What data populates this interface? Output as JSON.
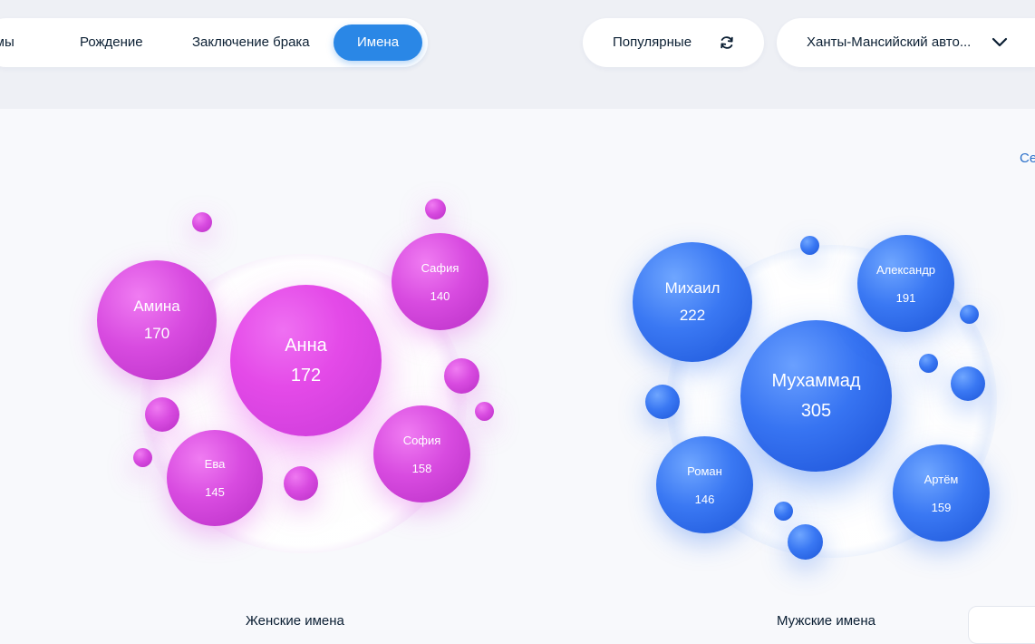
{
  "tabs": [
    {
      "label": "Темы"
    },
    {
      "label": "Рождение"
    },
    {
      "label": "Заключение брака"
    },
    {
      "label": "Имена"
    }
  ],
  "active_tab": "Имена",
  "sort_filter": {
    "label": "Популярные",
    "icon": "refresh-icon"
  },
  "region_select": {
    "value": "Ханты-Мансийский авто...",
    "icon": "chevron-down-icon"
  },
  "see_link": "Се",
  "female": {
    "caption": "Женские имена",
    "names": [
      {
        "name": "Анна",
        "count": "172"
      },
      {
        "name": "Амина",
        "count": "170"
      },
      {
        "name": "София",
        "count": "158"
      },
      {
        "name": "Ева",
        "count": "145"
      },
      {
        "name": "Сафия",
        "count": "140"
      }
    ]
  },
  "male": {
    "caption": "Мужские имена",
    "names": [
      {
        "name": "Мухаммад",
        "count": "305"
      },
      {
        "name": "Михаил",
        "count": "222"
      },
      {
        "name": "Александр",
        "count": "191"
      },
      {
        "name": "Артём",
        "count": "159"
      },
      {
        "name": "Роман",
        "count": "146"
      }
    ]
  },
  "colors": {
    "accent": "#2a87e6",
    "female": "#e44ae8",
    "male": "#3774f2"
  }
}
